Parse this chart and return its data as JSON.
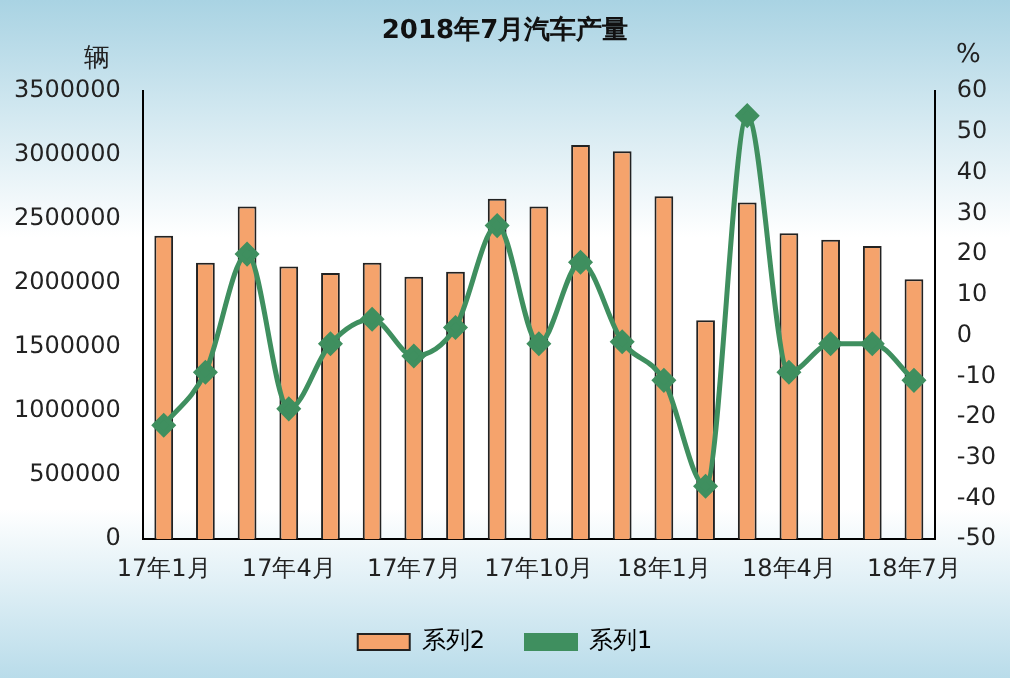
{
  "chart_data": {
    "type": "bar",
    "title": "2018年7月汽车产量",
    "ylabel": "辆",
    "y2label": "%",
    "categories": [
      "17年1月",
      null,
      null,
      "17年4月",
      null,
      null,
      "17年7月",
      null,
      null,
      "17年10月",
      null,
      null,
      "18年1月",
      null,
      null,
      "18年4月",
      null,
      null,
      "18年7月"
    ],
    "series": [
      {
        "name": "系列2",
        "color": "#f5a36c",
        "values": [
          2370000,
          2160000,
          2600000,
          2130000,
          2080000,
          2160000,
          2050000,
          2090000,
          2660000,
          2600000,
          3080000,
          3030000,
          2680000,
          1710000,
          2630000,
          2390000,
          2340000,
          2290000,
          2030000
        ]
      },
      {
        "name": "系列1",
        "type": "line",
        "axis": "y2",
        "color": "#3f8f5f",
        "values": [
          -22,
          -9,
          20,
          -18,
          -2,
          4,
          -5,
          2,
          27,
          -2,
          18,
          -1.5,
          -11,
          -37,
          54,
          -9,
          -2,
          -2,
          -11
        ]
      }
    ],
    "ylim": [
      0,
      3500000
    ],
    "yticks": [
      0,
      500000,
      1000000,
      1500000,
      2000000,
      2500000,
      3000000,
      3500000
    ],
    "y2lim": [
      -50,
      60
    ],
    "y2ticks": [
      -50,
      -40,
      -30,
      -20,
      -10,
      0,
      10,
      20,
      30,
      40,
      50,
      60
    ],
    "grid": false,
    "legend": "bottom",
    "marker": "diamond",
    "line_style": "solid"
  }
}
